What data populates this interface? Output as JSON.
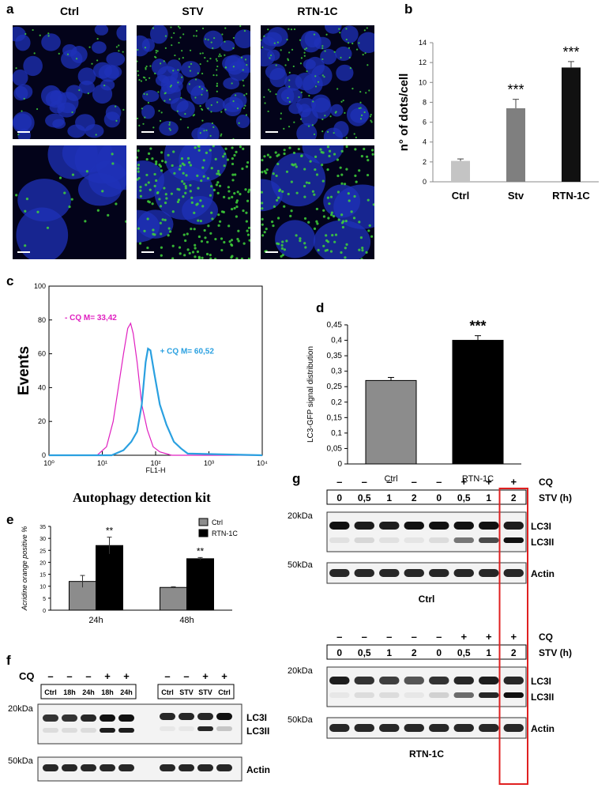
{
  "panels": {
    "a": "a",
    "b": "b",
    "c": "c",
    "d": "d",
    "e": "e",
    "f": "f",
    "g": "g"
  },
  "panel_a": {
    "columns": [
      "Ctrl",
      "STV",
      "RTN-1C"
    ]
  },
  "chart_data": [
    {
      "type": "bar",
      "panel": "b",
      "categories": [
        "Ctrl",
        "Stv",
        "RTN-1C"
      ],
      "values": [
        2.1,
        7.4,
        11.5
      ],
      "errors": [
        0.2,
        0.9,
        0.6
      ],
      "annotations": [
        "",
        "***",
        "***"
      ],
      "colors": [
        "#c4c4c4",
        "#7f7f7f",
        "#111111"
      ],
      "ylabel": "n° of dots/cell",
      "ylim": [
        0,
        14
      ],
      "yticks": [
        0,
        2,
        4,
        6,
        8,
        10,
        12,
        14
      ]
    },
    {
      "type": "line",
      "panel": "c",
      "xlabel": "FL1-H",
      "ylabel": "Events",
      "caption": "Autophagy detection kit",
      "xscale": "log",
      "xlim": [
        1,
        10000
      ],
      "ylim": [
        0,
        100
      ],
      "yticks": [
        0,
        20,
        40,
        60,
        80,
        100
      ],
      "xticks": [
        "10⁰",
        "10¹",
        "10²",
        "10³",
        "10⁴"
      ],
      "series": [
        {
          "name": "- CQ M= 33,42",
          "color": "#e020c0",
          "x": [
            1,
            8,
            12,
            16,
            20,
            25,
            30,
            34,
            38,
            45,
            55,
            70,
            90,
            120,
            200,
            10000
          ],
          "y": [
            0,
            0,
            5,
            20,
            40,
            60,
            75,
            78,
            72,
            55,
            30,
            15,
            5,
            2,
            0,
            0
          ]
        },
        {
          "name": "+ CQ M= 60,52",
          "color": "#2aa0e0",
          "x": [
            1,
            15,
            25,
            35,
            45,
            55,
            65,
            72,
            80,
            95,
            120,
            160,
            220,
            300,
            400,
            10000
          ],
          "y": [
            0,
            0,
            3,
            8,
            14,
            30,
            55,
            63,
            62,
            48,
            30,
            18,
            8,
            4,
            1,
            0
          ]
        }
      ]
    },
    {
      "type": "bar",
      "panel": "d",
      "categories": [
        "Ctrl",
        "RTN-1C"
      ],
      "values": [
        0.27,
        0.4
      ],
      "errors": [
        0.01,
        0.015
      ],
      "annotations": [
        "",
        "***"
      ],
      "colors": [
        "#8c8c8c",
        "#000000"
      ],
      "ylabel": "LC3-GFP signal distribution",
      "ylim": [
        0,
        0.45
      ],
      "yticks": [
        "0",
        "0,05",
        "0,1",
        "0,15",
        "0,2",
        "0,25",
        "0,3",
        "0,35",
        "0,4",
        "0,45"
      ]
    },
    {
      "type": "bar",
      "panel": "e",
      "categories": [
        "24h",
        "48h"
      ],
      "series": [
        {
          "name": "Ctrl",
          "color": "#8c8c8c",
          "values": [
            12,
            9.5
          ],
          "errors": [
            2.5,
            0.3
          ]
        },
        {
          "name": "RTN-1C",
          "color": "#000000",
          "values": [
            27,
            21.5
          ],
          "errors": [
            3.5,
            0.5
          ]
        }
      ],
      "annotations": [
        "**",
        "**"
      ],
      "ylabel": "Acridine orange positive %",
      "ylim": [
        0,
        35
      ],
      "yticks": [
        0,
        5,
        10,
        15,
        20,
        25,
        30,
        35
      ]
    }
  ],
  "panel_f": {
    "cq_label": "CQ",
    "group1": {
      "cq": [
        "–",
        "–",
        "–",
        "+",
        "+"
      ],
      "labels": [
        "Ctrl",
        "18h",
        "24h",
        "18h",
        "24h"
      ]
    },
    "group2": {
      "cq": [
        "–",
        "–",
        "+",
        "+"
      ],
      "labels": [
        "Ctrl",
        "STV",
        "STV",
        "Ctrl"
      ]
    },
    "mw_top": "20kDa",
    "mw_bottom": "50kDa",
    "band_lc3i": "LC3I",
    "band_lc3ii": "LC3II",
    "band_actin": "Actin"
  },
  "panel_g": {
    "cq_label": "CQ",
    "stv_label": "STV (h)",
    "cq": [
      "–",
      "–",
      "–",
      "–",
      "–",
      "+",
      "+",
      "+"
    ],
    "stv": [
      "0",
      "0,5",
      "1",
      "2",
      "0",
      "0,5",
      "1",
      "2"
    ],
    "mw_top": "20kDa",
    "mw_bottom": "50kDa",
    "band_lc3i": "LC3I",
    "band_lc3ii": "LC3II",
    "band_actin": "Actin",
    "ctrl_caption": "Ctrl",
    "rtn_caption": "RTN-1C"
  }
}
